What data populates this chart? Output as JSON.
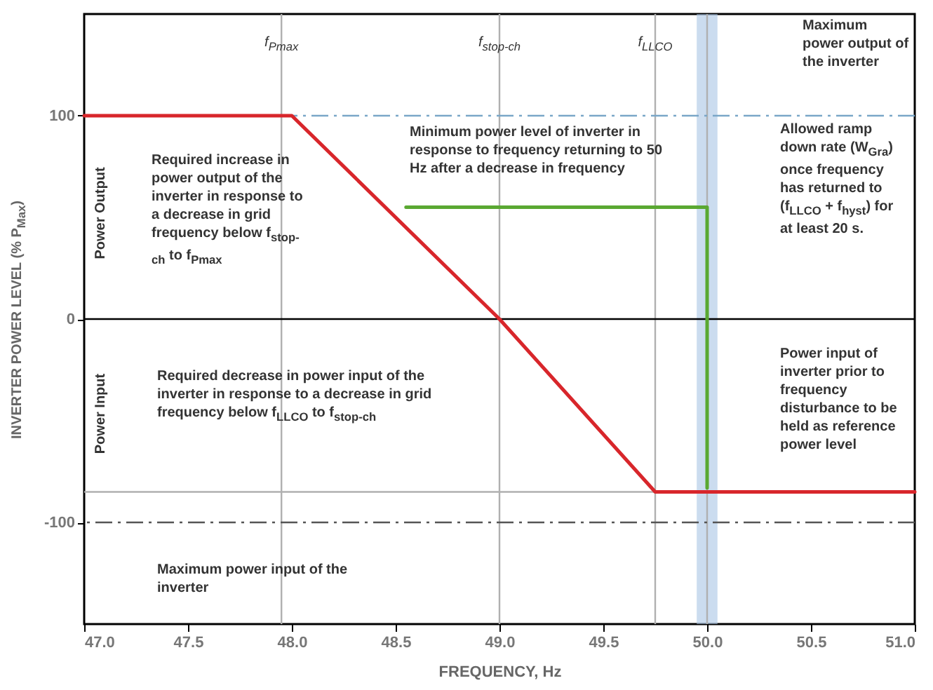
{
  "chart_data": {
    "type": "line",
    "xlabel": "FREQUENCY, Hz",
    "ylabel": "INVERTER POWER LEVEL (% P$_{Max}$)",
    "xlim": [
      47,
      51
    ],
    "ylim": [
      -150,
      150
    ],
    "xticks": [
      {
        "value": 47,
        "label": "47.0"
      },
      {
        "value": 47.5,
        "label": "47.5"
      },
      {
        "value": 48,
        "label": "48.0"
      },
      {
        "value": 48.5,
        "label": "48.5"
      },
      {
        "value": 49,
        "label": "49.0"
      },
      {
        "value": 49.5,
        "label": "49.5"
      },
      {
        "value": 50,
        "label": "50.0"
      },
      {
        "value": 50.5,
        "label": "50.5"
      },
      {
        "value": 51,
        "label": "51.0"
      }
    ],
    "yticks": [
      -100,
      0,
      100
    ],
    "grid": false,
    "marker": "none",
    "line_style": "solid",
    "series": [
      {
        "color": "#d8262b",
        "x": [
          47,
          48,
          49,
          49.75,
          51
        ],
        "values": [
          100,
          100,
          0,
          -85,
          -85
        ]
      },
      {
        "color": "#5aa832",
        "x": [
          48.55,
          50,
          50
        ],
        "values": [
          55,
          55,
          -83
        ]
      }
    ],
    "bands": [
      {
        "axis": "x",
        "from": 49.95,
        "to": 50.05,
        "color": "#a9c4e4"
      }
    ],
    "ref_lines": [
      {
        "axis": "x",
        "value": 47.95,
        "label": "f$_{Pmax}$",
        "color": "#b0b0b0",
        "line_style": "solid"
      },
      {
        "axis": "x",
        "value": 49,
        "label": "f$_{stop-ch}$",
        "color": "#b0b0b0",
        "line_style": "solid"
      },
      {
        "axis": "x",
        "value": 49.75,
        "label": "f$_{LLCO}$",
        "color": "#b0b0b0",
        "line_style": "solid"
      },
      {
        "axis": "x",
        "value": 50,
        "color": "#b0b0b0",
        "line_style": "solid"
      },
      {
        "axis": "y",
        "value": 0,
        "color": "#000000",
        "line_style": "solid"
      },
      {
        "axis": "y",
        "value": -85,
        "color": "#b0b0b0",
        "line_style": "solid"
      },
      {
        "axis": "y",
        "value": 100,
        "color": "#7aa6c8",
        "line_style": "dashed"
      },
      {
        "axis": "y",
        "value": -100,
        "color": "#555555",
        "line_style": "dashed"
      }
    ],
    "annotations": [
      "Maximum power output of the inverter",
      "Minimum power level of inverter in response to frequency returning to 50 Hz after a decrease in frequency",
      "Allowed ramp down rate (W$_{Gra}$) once frequency has returned to (f$_{LLCO}$ + f$_{hyst}$) for at least 20 s.",
      "Required increase in power output of the inverter in response to a decrease in grid frequency below f$_{stop-ch}$ to f$_{Pmax}$",
      "Required decrease in power input of the inverter in response to a decrease in grid frequency below f$_{LLCO}$ to f$_{stop-ch}$",
      "Power input of inverter prior to frequency disturbance to be held as reference power level",
      "Maximum power input of the inverter",
      "Power Output",
      "Power Input"
    ]
  }
}
